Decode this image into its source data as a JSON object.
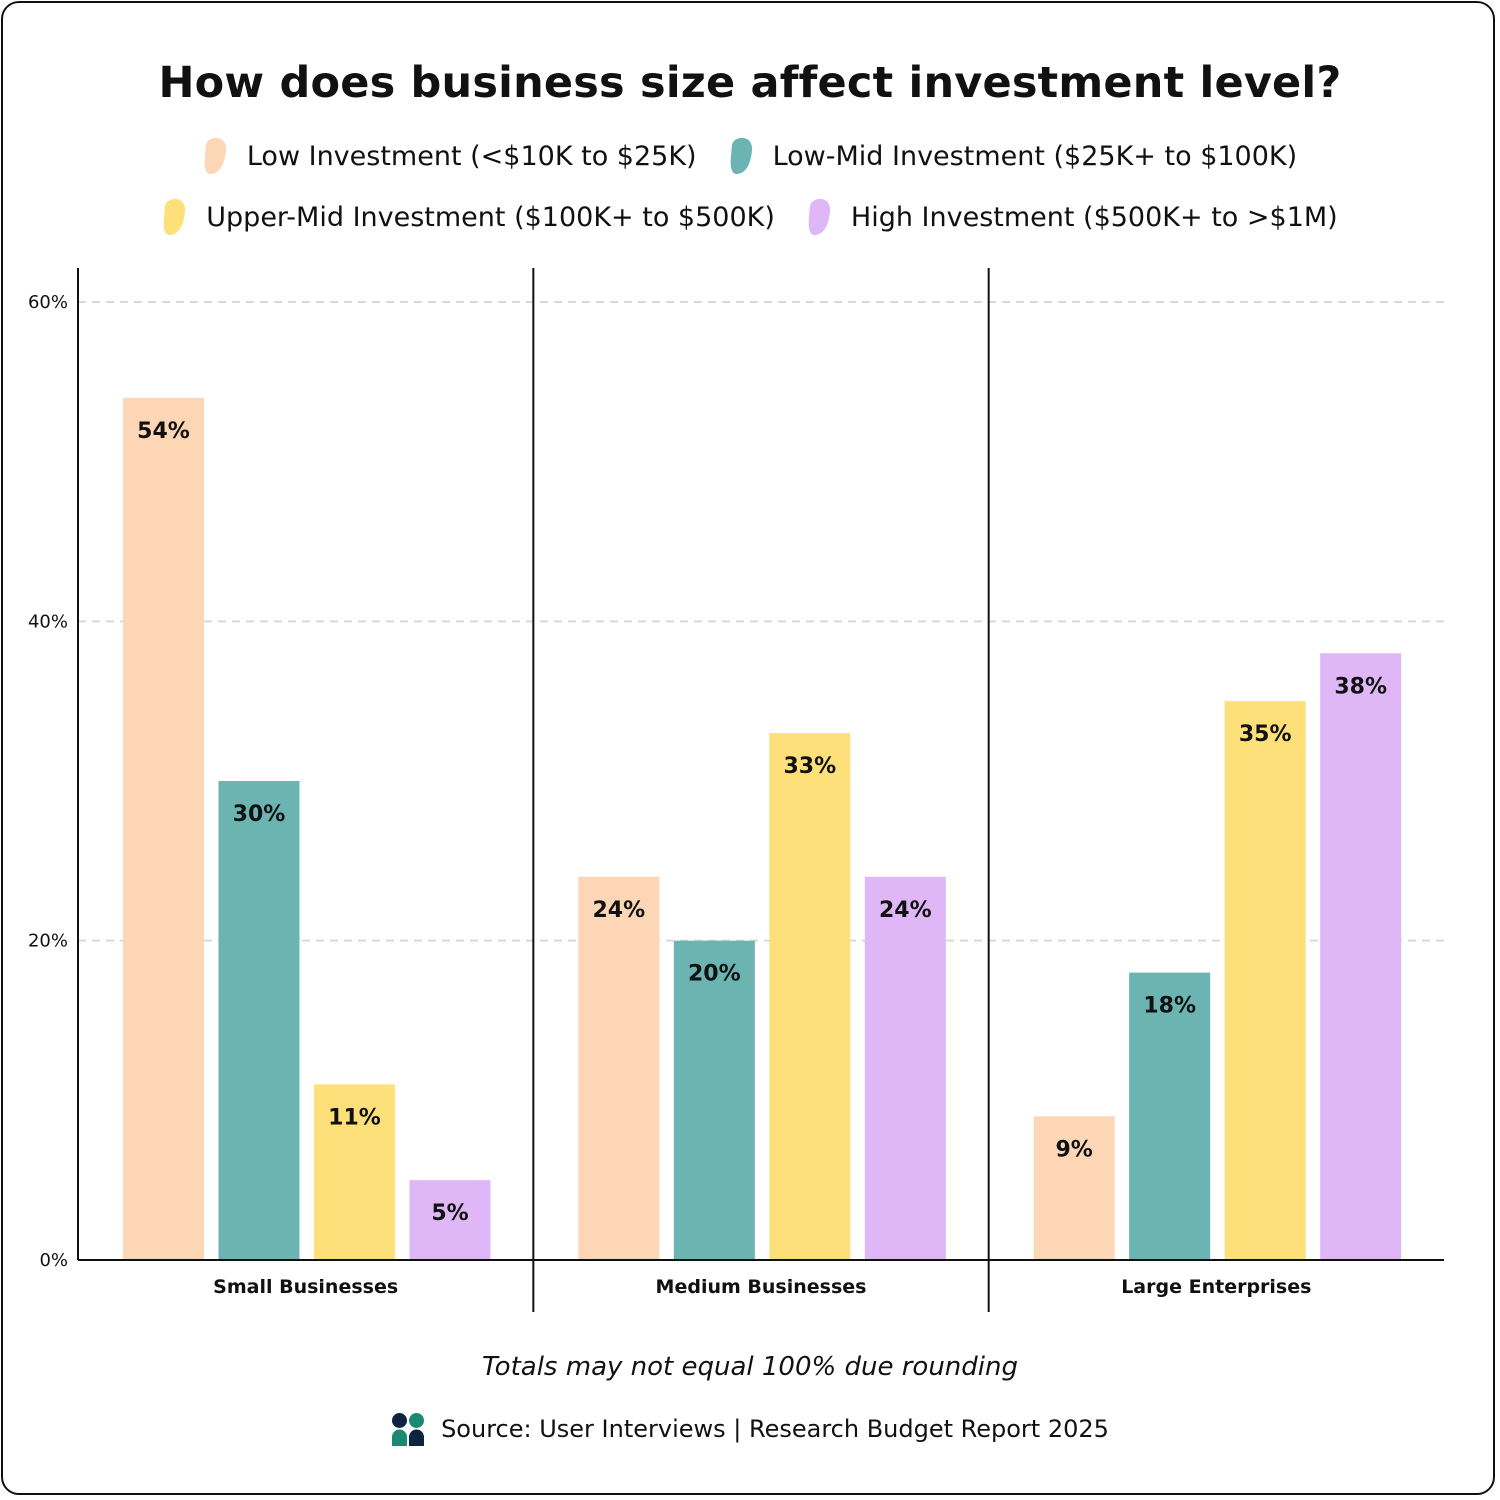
{
  "title": "How does business size affect investment level?",
  "note": "Totals may not equal 100% due rounding",
  "source": "Source: User Interviews | Research Budget Report 2025",
  "logo_icon": "user-interviews-logo",
  "chart_data": {
    "type": "bar",
    "title": "How does business size affect investment level?",
    "xlabel": "",
    "ylabel": "",
    "ylim": [
      0,
      60
    ],
    "yticks": [
      "0%",
      "20%",
      "40%",
      "60%"
    ],
    "ytick_values": [
      0,
      20,
      40,
      60
    ],
    "grid": true,
    "legend_placement": "top",
    "categories": [
      "Small Businesses",
      "Medium Businesses",
      "Large Enterprises"
    ],
    "series": [
      {
        "name": "Low Investment (<$10K to $25K)",
        "color": "#fdd6b5",
        "values": [
          54,
          24,
          9
        ]
      },
      {
        "name": "Low-Mid Investment ($25K+ to $100K)",
        "color": "#6cb4b2",
        "values": [
          30,
          20,
          18
        ]
      },
      {
        "name": "Upper-Mid Investment ($100K+ to $500K)",
        "color": "#fde07a",
        "values": [
          11,
          33,
          35
        ]
      },
      {
        "name": "High Investment ($500K+ to >$1M)",
        "color": "#dfb7f7",
        "values": [
          5,
          24,
          38
        ]
      }
    ]
  }
}
